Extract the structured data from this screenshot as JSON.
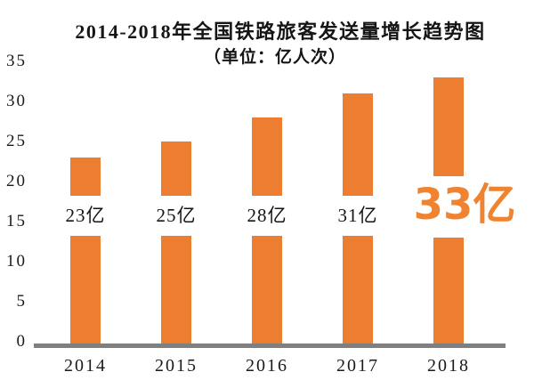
{
  "title": "2014-2018年全国铁路旅客发送量增长趋势图",
  "subtitle": "（单位：亿人次）",
  "chart_data": {
    "type": "bar",
    "title": "2014-2018年全国铁路旅客发送量增长趋势图",
    "subtitle": "（单位：亿人次）",
    "categories": [
      "2014",
      "2015",
      "2016",
      "2017",
      "2018"
    ],
    "values": [
      23,
      25,
      28,
      31,
      33
    ],
    "bar_labels": [
      "23亿",
      "25亿",
      "28亿",
      "31亿",
      "33亿"
    ],
    "highlight_index": 4,
    "xlabel": "",
    "ylabel": "",
    "ylim": [
      0,
      35
    ],
    "yticks": [
      0,
      5,
      10,
      15,
      20,
      25,
      30,
      35
    ],
    "grid": false,
    "legend": "none",
    "colors": {
      "bar": "#ED7D31",
      "highlight_label": "#EF8330",
      "bar_label": "#141414",
      "axis_line": "#7F7F7F",
      "text": "#1A1A1A",
      "background": "#FFFFFF"
    }
  }
}
